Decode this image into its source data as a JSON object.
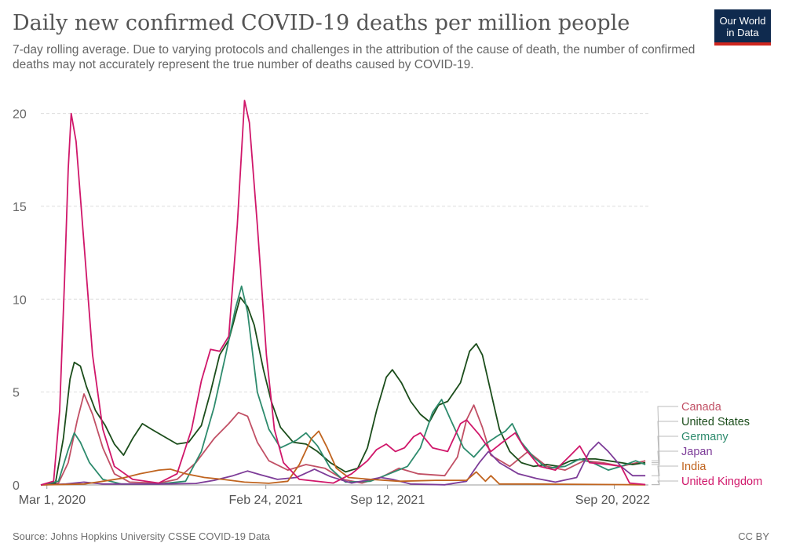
{
  "chart_data": {
    "type": "line",
    "title": "Daily new confirmed COVID-19 deaths per million people",
    "subtitle": "7-day rolling average. Due to varying protocols and challenges in the attribution of the cause of death, the number of confirmed deaths may not accurately represent the true number of deaths caused by COVID-19.",
    "source": "Source: Johns Hopkins University CSSE COVID-19 Data",
    "license": "CC BY",
    "logo_lines": [
      "Our World",
      "in Data"
    ],
    "x_type": "date",
    "xlim": [
      "2020-02-20",
      "2022-11-15"
    ],
    "ylim": [
      0,
      20.7
    ],
    "y_ticks": [
      0,
      5,
      10,
      15,
      20
    ],
    "x_ticks": [
      {
        "date": "2020-03-01",
        "label": "Mar 1, 2020"
      },
      {
        "date": "2021-02-24",
        "label": "Feb 24, 2021"
      },
      {
        "date": "2021-09-12",
        "label": "Sep 12, 2021"
      },
      {
        "date": "2022-09-20",
        "label": "Sep 20, 2022"
      }
    ],
    "grid": true,
    "legend_position": "right",
    "series": [
      {
        "name": "Canada",
        "color": "#c15065",
        "points": [
          [
            "2020-02-20",
            0
          ],
          [
            "2020-03-20",
            0.1
          ],
          [
            "2020-04-05",
            1.2
          ],
          [
            "2020-04-20",
            3.5
          ],
          [
            "2020-05-01",
            4.9
          ],
          [
            "2020-05-15",
            3.8
          ],
          [
            "2020-06-01",
            2.0
          ],
          [
            "2020-06-20",
            0.6
          ],
          [
            "2020-07-15",
            0.15
          ],
          [
            "2020-09-01",
            0.1
          ],
          [
            "2020-10-01",
            0.3
          ],
          [
            "2020-11-01",
            1.2
          ],
          [
            "2020-12-01",
            2.5
          ],
          [
            "2020-12-25",
            3.3
          ],
          [
            "2021-01-10",
            3.9
          ],
          [
            "2021-01-25",
            3.7
          ],
          [
            "2021-02-10",
            2.3
          ],
          [
            "2021-03-01",
            1.3
          ],
          [
            "2021-04-01",
            0.8
          ],
          [
            "2021-05-01",
            1.1
          ],
          [
            "2021-06-01",
            0.9
          ],
          [
            "2021-07-01",
            0.3
          ],
          [
            "2021-08-01",
            0.1
          ],
          [
            "2021-09-01",
            0.4
          ],
          [
            "2021-10-01",
            0.9
          ],
          [
            "2021-11-01",
            0.6
          ],
          [
            "2021-12-15",
            0.5
          ],
          [
            "2022-01-05",
            1.5
          ],
          [
            "2022-01-20",
            3.5
          ],
          [
            "2022-02-01",
            4.3
          ],
          [
            "2022-02-15",
            3.1
          ],
          [
            "2022-03-01",
            1.6
          ],
          [
            "2022-04-01",
            1.0
          ],
          [
            "2022-05-01",
            1.8
          ],
          [
            "2022-06-01",
            1.0
          ],
          [
            "2022-07-01",
            0.8
          ],
          [
            "2022-08-01",
            1.3
          ],
          [
            "2022-09-01",
            1.2
          ],
          [
            "2022-10-01",
            1.0
          ],
          [
            "2022-11-10",
            1.3
          ]
        ]
      },
      {
        "name": "United States",
        "color": "#1b4d1b",
        "points": [
          [
            "2020-02-20",
            0
          ],
          [
            "2020-03-15",
            0.1
          ],
          [
            "2020-03-28",
            2.5
          ],
          [
            "2020-04-08",
            5.7
          ],
          [
            "2020-04-15",
            6.6
          ],
          [
            "2020-04-25",
            6.4
          ],
          [
            "2020-05-05",
            5.3
          ],
          [
            "2020-05-20",
            4.0
          ],
          [
            "2020-06-05",
            3.2
          ],
          [
            "2020-06-20",
            2.2
          ],
          [
            "2020-07-05",
            1.6
          ],
          [
            "2020-07-20",
            2.5
          ],
          [
            "2020-08-05",
            3.3
          ],
          [
            "2020-08-20",
            3.0
          ],
          [
            "2020-09-10",
            2.6
          ],
          [
            "2020-10-01",
            2.2
          ],
          [
            "2020-10-20",
            2.3
          ],
          [
            "2020-11-10",
            3.2
          ],
          [
            "2020-11-25",
            5.0
          ],
          [
            "2020-12-10",
            7.0
          ],
          [
            "2020-12-25",
            7.8
          ],
          [
            "2021-01-13",
            10.1
          ],
          [
            "2021-01-25",
            9.6
          ],
          [
            "2021-02-05",
            8.6
          ],
          [
            "2021-02-20",
            6.2
          ],
          [
            "2021-03-05",
            4.5
          ],
          [
            "2021-03-20",
            3.1
          ],
          [
            "2021-04-10",
            2.3
          ],
          [
            "2021-05-01",
            2.2
          ],
          [
            "2021-05-20",
            1.8
          ],
          [
            "2021-06-10",
            1.2
          ],
          [
            "2021-07-05",
            0.7
          ],
          [
            "2021-07-25",
            0.9
          ],
          [
            "2021-08-10",
            2.0
          ],
          [
            "2021-08-25",
            4.0
          ],
          [
            "2021-09-10",
            5.8
          ],
          [
            "2021-09-20",
            6.2
          ],
          [
            "2021-10-05",
            5.5
          ],
          [
            "2021-10-20",
            4.5
          ],
          [
            "2021-11-05",
            3.8
          ],
          [
            "2021-11-20",
            3.4
          ],
          [
            "2021-12-05",
            4.3
          ],
          [
            "2021-12-20",
            4.5
          ],
          [
            "2022-01-10",
            5.5
          ],
          [
            "2022-01-25",
            7.2
          ],
          [
            "2022-02-05",
            7.6
          ],
          [
            "2022-02-15",
            7.0
          ],
          [
            "2022-03-01",
            5.0
          ],
          [
            "2022-03-15",
            3.0
          ],
          [
            "2022-04-01",
            1.8
          ],
          [
            "2022-04-20",
            1.2
          ],
          [
            "2022-05-10",
            1.0
          ],
          [
            "2022-06-01",
            1.1
          ],
          [
            "2022-06-20",
            1.0
          ],
          [
            "2022-07-10",
            1.3
          ],
          [
            "2022-08-01",
            1.4
          ],
          [
            "2022-08-20",
            1.4
          ],
          [
            "2022-09-10",
            1.3
          ],
          [
            "2022-10-01",
            1.2
          ],
          [
            "2022-10-20",
            1.1
          ],
          [
            "2022-11-10",
            1.2
          ]
        ]
      },
      {
        "name": "Germany",
        "color": "#2e8b6d",
        "points": [
          [
            "2020-02-20",
            0
          ],
          [
            "2020-03-20",
            0.2
          ],
          [
            "2020-04-05",
            1.9
          ],
          [
            "2020-04-15",
            2.8
          ],
          [
            "2020-04-25",
            2.3
          ],
          [
            "2020-05-10",
            1.2
          ],
          [
            "2020-06-01",
            0.3
          ],
          [
            "2020-07-01",
            0.05
          ],
          [
            "2020-09-01",
            0.05
          ],
          [
            "2020-10-15",
            0.2
          ],
          [
            "2020-11-10",
            1.8
          ],
          [
            "2020-12-01",
            4.2
          ],
          [
            "2020-12-20",
            7.0
          ],
          [
            "2021-01-05",
            9.5
          ],
          [
            "2021-01-15",
            10.7
          ],
          [
            "2021-01-25",
            9.3
          ],
          [
            "2021-02-10",
            5.0
          ],
          [
            "2021-03-01",
            3.0
          ],
          [
            "2021-03-20",
            2.0
          ],
          [
            "2021-04-15",
            2.4
          ],
          [
            "2021-05-01",
            2.8
          ],
          [
            "2021-05-20",
            2.1
          ],
          [
            "2021-06-10",
            0.9
          ],
          [
            "2021-07-05",
            0.15
          ],
          [
            "2021-08-15",
            0.2
          ],
          [
            "2021-09-15",
            0.6
          ],
          [
            "2021-10-15",
            1.0
          ],
          [
            "2021-11-05",
            2.0
          ],
          [
            "2021-11-25",
            3.9
          ],
          [
            "2021-12-10",
            4.6
          ],
          [
            "2021-12-25",
            3.5
          ],
          [
            "2022-01-15",
            2.0
          ],
          [
            "2022-02-01",
            1.5
          ],
          [
            "2022-02-20",
            2.2
          ],
          [
            "2022-03-10",
            2.6
          ],
          [
            "2022-03-25",
            2.9
          ],
          [
            "2022-04-05",
            3.3
          ],
          [
            "2022-04-20",
            2.3
          ],
          [
            "2022-05-10",
            1.5
          ],
          [
            "2022-06-01",
            0.9
          ],
          [
            "2022-07-01",
            1.0
          ],
          [
            "2022-07-25",
            1.4
          ],
          [
            "2022-08-15",
            1.2
          ],
          [
            "2022-09-10",
            0.8
          ],
          [
            "2022-10-01",
            1.0
          ],
          [
            "2022-10-25",
            1.3
          ],
          [
            "2022-11-10",
            1.1
          ]
        ]
      },
      {
        "name": "Japan",
        "color": "#7d3c98",
        "points": [
          [
            "2020-02-20",
            0
          ],
          [
            "2020-04-01",
            0.05
          ],
          [
            "2020-05-01",
            0.15
          ],
          [
            "2020-06-01",
            0.05
          ],
          [
            "2020-09-01",
            0.05
          ],
          [
            "2020-11-01",
            0.08
          ],
          [
            "2020-12-01",
            0.25
          ],
          [
            "2021-01-01",
            0.5
          ],
          [
            "2021-01-25",
            0.75
          ],
          [
            "2021-02-15",
            0.55
          ],
          [
            "2021-03-15",
            0.3
          ],
          [
            "2021-04-15",
            0.4
          ],
          [
            "2021-05-15",
            0.85
          ],
          [
            "2021-06-10",
            0.45
          ],
          [
            "2021-07-15",
            0.1
          ],
          [
            "2021-09-01",
            0.4
          ],
          [
            "2021-09-20",
            0.3
          ],
          [
            "2021-10-20",
            0.05
          ],
          [
            "2021-12-15",
            0.01
          ],
          [
            "2022-01-20",
            0.2
          ],
          [
            "2022-02-10",
            1.2
          ],
          [
            "2022-02-25",
            1.8
          ],
          [
            "2022-03-15",
            1.2
          ],
          [
            "2022-04-15",
            0.6
          ],
          [
            "2022-05-15",
            0.35
          ],
          [
            "2022-06-15",
            0.15
          ],
          [
            "2022-07-20",
            0.4
          ],
          [
            "2022-08-10",
            1.8
          ],
          [
            "2022-08-25",
            2.3
          ],
          [
            "2022-09-10",
            1.8
          ],
          [
            "2022-10-01",
            1.0
          ],
          [
            "2022-10-20",
            0.5
          ],
          [
            "2022-11-10",
            0.5
          ]
        ]
      },
      {
        "name": "India",
        "color": "#c0641f",
        "points": [
          [
            "2020-02-20",
            0
          ],
          [
            "2020-05-01",
            0.05
          ],
          [
            "2020-06-01",
            0.2
          ],
          [
            "2020-07-01",
            0.35
          ],
          [
            "2020-08-01",
            0.6
          ],
          [
            "2020-09-01",
            0.8
          ],
          [
            "2020-09-20",
            0.85
          ],
          [
            "2020-10-15",
            0.6
          ],
          [
            "2020-11-15",
            0.4
          ],
          [
            "2020-12-15",
            0.3
          ],
          [
            "2021-01-20",
            0.15
          ],
          [
            "2021-03-01",
            0.09
          ],
          [
            "2021-04-01",
            0.2
          ],
          [
            "2021-04-20",
            1.1
          ],
          [
            "2021-05-10",
            2.5
          ],
          [
            "2021-05-22",
            2.9
          ],
          [
            "2021-06-05",
            2.0
          ],
          [
            "2021-06-20",
            0.9
          ],
          [
            "2021-07-10",
            0.4
          ],
          [
            "2021-08-15",
            0.3
          ],
          [
            "2021-10-01",
            0.2
          ],
          [
            "2021-12-01",
            0.25
          ],
          [
            "2022-01-20",
            0.25
          ],
          [
            "2022-02-05",
            0.7
          ],
          [
            "2022-02-20",
            0.2
          ],
          [
            "2022-03-01",
            0.5
          ],
          [
            "2022-03-15",
            0.05
          ],
          [
            "2022-05-01",
            0.05
          ],
          [
            "2022-11-10",
            0.01
          ]
        ]
      },
      {
        "name": "United Kingdom",
        "color": "#d0176a",
        "points": [
          [
            "2020-02-20",
            0
          ],
          [
            "2020-03-12",
            0.2
          ],
          [
            "2020-03-22",
            4.0
          ],
          [
            "2020-03-30",
            11.0
          ],
          [
            "2020-04-05",
            17.0
          ],
          [
            "2020-04-10",
            20.0
          ],
          [
            "2020-04-18",
            18.5
          ],
          [
            "2020-05-01",
            13.0
          ],
          [
            "2020-05-15",
            7.0
          ],
          [
            "2020-06-01",
            3.0
          ],
          [
            "2020-06-20",
            1.0
          ],
          [
            "2020-07-20",
            0.3
          ],
          [
            "2020-09-01",
            0.1
          ],
          [
            "2020-10-01",
            0.6
          ],
          [
            "2020-10-25",
            3.0
          ],
          [
            "2020-11-10",
            5.6
          ],
          [
            "2020-11-25",
            7.3
          ],
          [
            "2020-12-10",
            7.2
          ],
          [
            "2020-12-25",
            8.0
          ],
          [
            "2021-01-08",
            14.0
          ],
          [
            "2021-01-20",
            20.7
          ],
          [
            "2021-01-28",
            19.5
          ],
          [
            "2021-02-10",
            14.0
          ],
          [
            "2021-02-25",
            7.0
          ],
          [
            "2021-03-10",
            3.0
          ],
          [
            "2021-03-25",
            1.2
          ],
          [
            "2021-04-20",
            0.3
          ],
          [
            "2021-06-15",
            0.1
          ],
          [
            "2021-07-15",
            0.6
          ],
          [
            "2021-08-10",
            1.3
          ],
          [
            "2021-08-25",
            1.9
          ],
          [
            "2021-09-10",
            2.2
          ],
          [
            "2021-09-25",
            1.8
          ],
          [
            "2021-10-10",
            2.0
          ],
          [
            "2021-10-25",
            2.6
          ],
          [
            "2021-11-05",
            2.8
          ],
          [
            "2021-11-25",
            2.0
          ],
          [
            "2021-12-20",
            1.8
          ],
          [
            "2022-01-10",
            3.3
          ],
          [
            "2022-01-20",
            3.5
          ],
          [
            "2022-02-10",
            2.7
          ],
          [
            "2022-03-01",
            1.8
          ],
          [
            "2022-03-20",
            2.3
          ],
          [
            "2022-04-10",
            2.8
          ],
          [
            "2022-04-25",
            2.0
          ],
          [
            "2022-05-20",
            1.0
          ],
          [
            "2022-06-15",
            0.8
          ],
          [
            "2022-07-10",
            1.6
          ],
          [
            "2022-07-25",
            2.1
          ],
          [
            "2022-08-10",
            1.2
          ],
          [
            "2022-09-10",
            1.1
          ],
          [
            "2022-10-01",
            1.0
          ],
          [
            "2022-10-15",
            0.1
          ],
          [
            "2022-11-10",
            0.02
          ]
        ]
      }
    ]
  }
}
